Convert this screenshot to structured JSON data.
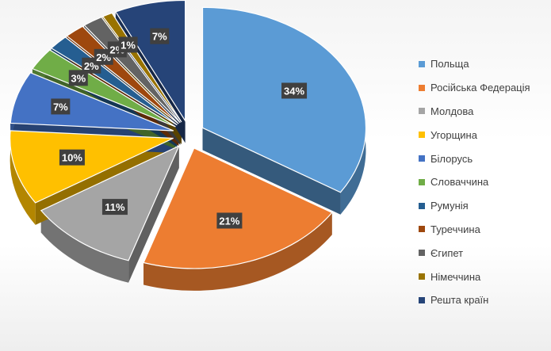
{
  "chart_data": {
    "type": "pie",
    "style": "3d-exploded",
    "title": "",
    "legend_position": "right",
    "categories": [
      "Польща",
      "Російська Федерація",
      "Молдова",
      "Угорщина",
      "Білорусь",
      "Словаччина",
      "Румунія",
      "Туреччина",
      "Єгипет",
      "Німеччина",
      "Решта країн"
    ],
    "values": [
      34,
      21,
      11,
      10,
      7,
      3,
      2,
      2,
      2,
      1,
      7
    ],
    "data_labels": [
      "34%",
      "21%",
      "11%",
      "10%",
      "7%",
      "3%",
      "2%",
      "2%",
      "2%",
      "1%",
      "7%"
    ],
    "colors": [
      "#5b9bd5",
      "#ed7d31",
      "#a5a5a5",
      "#ffc000",
      "#4472c4",
      "#70ad47",
      "#255e91",
      "#9e480e",
      "#636363",
      "#997300",
      "#264478"
    ]
  }
}
